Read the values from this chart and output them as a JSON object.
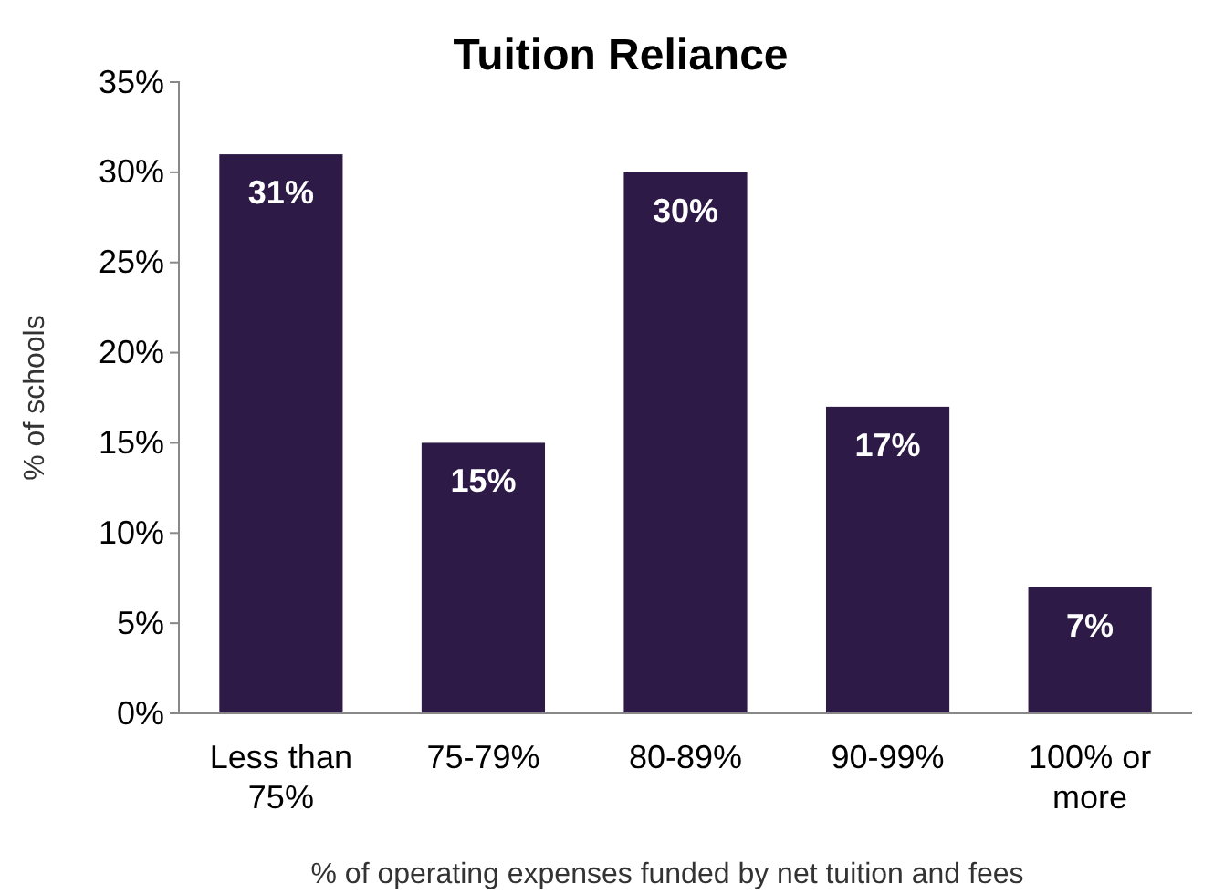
{
  "chart_data": {
    "type": "bar",
    "title": "Tuition Reliance",
    "xlabel": "% of operating expenses funded by net tuition and fees",
    "ylabel": "% of schools",
    "categories": [
      "Less than 75%",
      "75-79%",
      "80-89%",
      "90-99%",
      "100% or more"
    ],
    "values": [
      31,
      15,
      30,
      17,
      7
    ],
    "color": "#2e1a47",
    "value_labels": [
      "31%",
      "15%",
      "30%",
      "17%",
      "7%"
    ],
    "ylim": [
      0,
      35
    ],
    "yticks": [
      {
        "value": 0,
        "label": "0%"
      },
      {
        "value": 5,
        "label": "5%"
      },
      {
        "value": 10,
        "label": "10%"
      },
      {
        "value": 15,
        "label": "15%"
      },
      {
        "value": 20,
        "label": "20%"
      },
      {
        "value": 25,
        "label": "25%"
      },
      {
        "value": 30,
        "label": "30%"
      },
      {
        "value": 35,
        "label": "35%"
      }
    ],
    "grid": false
  }
}
